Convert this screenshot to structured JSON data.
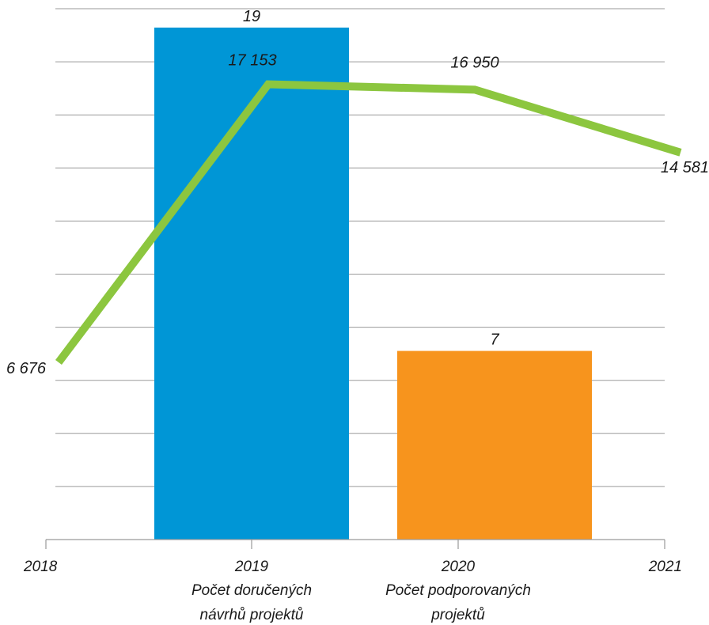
{
  "chart_data": {
    "type": "bar+line",
    "title": "",
    "xlabel": "",
    "ylabel": "",
    "x_ticks": [
      "2018",
      "2019",
      "2020",
      "2021"
    ],
    "bars": {
      "labels": [
        "Počet doručených návrhů projektů",
        "Počet podporovaných projektů"
      ],
      "label_lines": [
        [
          "Počet doručených",
          "návrhů projektů"
        ],
        [
          "Počet podporovaných",
          "projektů"
        ]
      ],
      "values": [
        19,
        7
      ],
      "value_labels": [
        "19",
        "7"
      ],
      "colors": [
        "#0096d6",
        "#f7941d"
      ],
      "ylim": [
        0,
        19.7
      ]
    },
    "line": {
      "x": [
        "2018",
        "2019",
        "2020",
        "2021"
      ],
      "values": [
        6676,
        17153,
        16950,
        14581
      ],
      "value_labels": [
        "6 676",
        "17 153",
        "16 950",
        "14 581"
      ],
      "color": "#8cc63f",
      "ylim": [
        0,
        20000
      ]
    },
    "grid": true,
    "gridlines": 10
  }
}
